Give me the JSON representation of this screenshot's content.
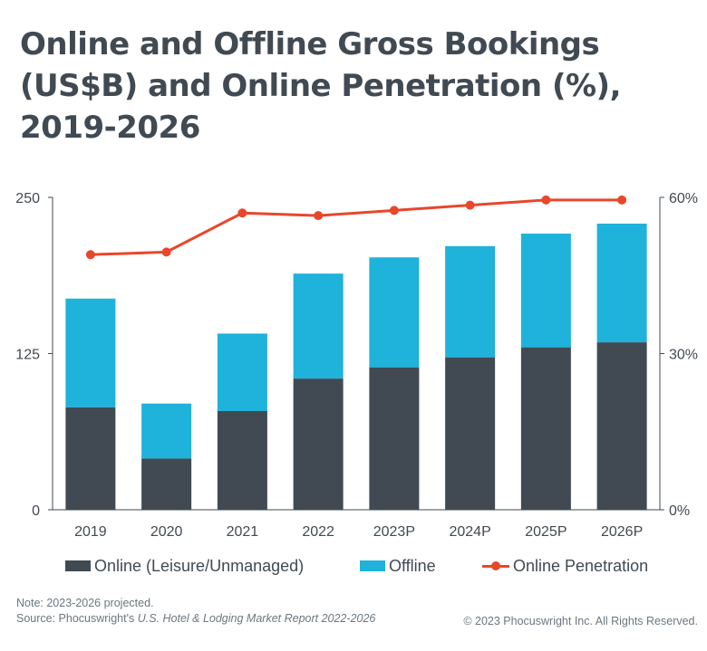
{
  "title": {
    "line1": "Online and Offline Gross Bookings",
    "line2": "(US$B) and Online Penetration (%),",
    "line3": "2019-2026"
  },
  "colors": {
    "online": "#414a52",
    "offline": "#1fb2da",
    "penetration": "#e8472b",
    "axis": "#414a52"
  },
  "chart_data": {
    "type": "bar",
    "stacked": true,
    "categories": [
      "2019",
      "2020",
      "2021",
      "2022",
      "2023P",
      "2024P",
      "2025P",
      "2026P"
    ],
    "series": [
      {
        "name": "Online (Leisure/Unmanaged)",
        "type": "bar",
        "axis": "left",
        "values": [
          82,
          41,
          79,
          105,
          114,
          122,
          130,
          134
        ]
      },
      {
        "name": "Offline",
        "type": "bar",
        "axis": "left",
        "values": [
          87,
          44,
          62,
          84,
          88,
          89,
          91,
          95
        ]
      },
      {
        "name": "Online Penetration",
        "type": "line",
        "axis": "right",
        "values": [
          49,
          49.5,
          57,
          56.5,
          57.5,
          58.5,
          59.5,
          59.5
        ]
      }
    ],
    "y_left": {
      "ticks": [
        "0",
        "125",
        "250"
      ],
      "tick_values": [
        0,
        125,
        250
      ],
      "range": [
        0,
        250
      ]
    },
    "y_right": {
      "ticks": [
        "0%",
        "30%",
        "60%"
      ],
      "tick_values": [
        0,
        30,
        60
      ],
      "range": [
        0,
        60
      ],
      "unit": "%"
    },
    "grid": false,
    "legend": "bottom"
  },
  "legend": {
    "online": "Online (Leisure/Unmanaged)",
    "offline": "Offline",
    "penetration": "Online Penetration"
  },
  "footer": {
    "note": "Note: 2023-2026 projected.",
    "source_prefix": "Source: Phocuswright's ",
    "source_title": "U.S. Hotel & Lodging Market Report 2022-2026",
    "copyright": "© 2023 Phocuswright Inc. All Rights Reserved."
  }
}
